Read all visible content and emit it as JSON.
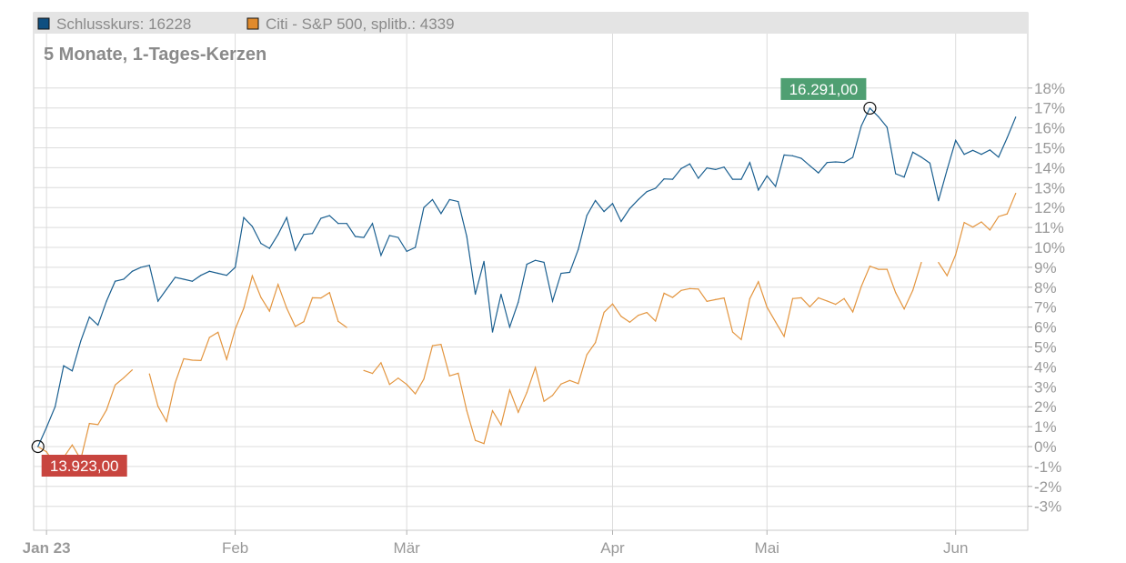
{
  "legend": [
    {
      "label": "Schlusskurs: 16228",
      "color": "#0f4f80"
    },
    {
      "label": "Citi - S&P 500, splitb.: 4339",
      "color": "#e08a2c"
    }
  ],
  "subtitle": "5 Monate, 1-Tages-Kerzen",
  "chart_data": {
    "type": "line",
    "grid": true,
    "y_axis": {
      "position": "right",
      "unit": "%",
      "ylim": [
        -3.5,
        18.5
      ],
      "ticks": [
        18,
        17,
        16,
        15,
        14,
        13,
        12,
        11,
        10,
        9,
        8,
        7,
        6,
        5,
        4,
        3,
        2,
        1,
        0,
        -1,
        -2,
        -3
      ],
      "tick_labels": [
        "18%",
        "17%",
        "16%",
        "15%",
        "14%",
        "13%",
        "12%",
        "11%",
        "10%",
        "9%",
        "8%",
        "7%",
        "6%",
        "5%",
        "4%",
        "3%",
        "2%",
        "1%",
        "0%",
        "-1%",
        "-2%",
        "-3%"
      ]
    },
    "x_axis": {
      "unit": "trading day index",
      "ticks": [
        {
          "label": "Jan 23",
          "at": 1,
          "bold": true
        },
        {
          "label": "Feb",
          "at": 23
        },
        {
          "label": "Mär",
          "at": 43
        },
        {
          "label": "Apr",
          "at": 67
        },
        {
          "label": "Mai",
          "at": 85
        },
        {
          "label": "Jun",
          "at": 107
        }
      ]
    },
    "series": [
      {
        "name": "Schlusskurs",
        "color": "#1a5f90",
        "values": [
          0,
          0.96,
          2.0,
          4.06,
          3.8,
          5.3,
          6.5,
          6.1,
          7.3,
          8.3,
          8.4,
          8.8,
          9.0,
          9.1,
          7.3,
          7.9,
          8.5,
          8.4,
          8.3,
          8.6,
          8.8,
          8.7,
          8.6,
          9.0,
          11.5,
          11.05,
          10.2,
          9.95,
          10.65,
          11.5,
          9.86,
          10.65,
          10.7,
          11.46,
          11.6,
          11.2,
          11.2,
          10.55,
          10.5,
          11.2,
          9.6,
          10.6,
          10.5,
          9.8,
          10.0,
          12.0,
          12.4,
          11.7,
          12.4,
          12.3,
          10.55,
          7.65,
          9.3,
          5.75,
          7.65,
          6.0,
          7.25,
          9.15,
          9.35,
          9.25,
          7.3,
          8.7,
          8.75,
          9.9,
          11.6,
          12.35,
          11.8,
          12.2,
          11.3,
          11.95,
          12.4,
          12.8,
          12.97,
          13.44,
          13.42,
          13.96,
          14.19,
          13.47,
          13.99,
          13.91,
          14.03,
          13.42,
          13.42,
          14.26,
          12.88,
          13.59,
          13.06,
          14.64,
          14.6,
          14.47,
          14.1,
          13.74,
          14.26,
          14.29,
          14.26,
          14.52,
          16.1,
          16.99,
          16.56,
          16.03,
          13.7,
          13.53,
          14.78,
          14.53,
          14.23,
          12.34,
          13.9,
          15.37,
          14.67,
          14.87,
          14.67,
          14.89,
          14.53,
          15.5,
          16.54
        ]
      },
      {
        "name": "Citi - S&P 500, splitb.",
        "color": "#e3953f",
        "values": [
          0,
          -0.26,
          -0.9,
          -0.55,
          0.08,
          -0.64,
          1.16,
          1.1,
          1.84,
          3.09,
          3.45,
          3.85,
          null,
          3.65,
          2.02,
          1.26,
          3.2,
          4.41,
          4.34,
          4.32,
          5.48,
          5.74,
          4.38,
          5.9,
          6.94,
          8.57,
          7.49,
          6.8,
          8.14,
          6.95,
          6.03,
          6.27,
          7.47,
          7.46,
          7.73,
          6.29,
          5.98,
          null,
          3.82,
          3.67,
          4.21,
          3.12,
          3.44,
          3.12,
          2.65,
          3.39,
          5.07,
          5.13,
          3.55,
          3.68,
          1.8,
          0.31,
          0.15,
          1.8,
          1.08,
          2.84,
          1.72,
          2.71,
          3.97,
          2.27,
          2.57,
          3.14,
          3.32,
          3.16,
          4.61,
          5.22,
          6.74,
          7.16,
          6.54,
          6.24,
          6.59,
          6.73,
          6.3,
          7.7,
          7.49,
          7.84,
          7.93,
          7.91,
          7.29,
          7.38,
          7.46,
          5.75,
          5.37,
          7.43,
          8.28,
          7.0,
          6.26,
          5.53,
          7.43,
          7.47,
          7.02,
          7.47,
          7.31,
          7.14,
          7.43,
          6.76,
          8.04,
          9.06,
          8.9,
          8.9,
          7.73,
          6.91,
          7.84,
          9.24,
          null,
          9.24,
          8.58,
          9.63,
          11.25,
          11.02,
          11.28,
          10.87,
          11.55,
          11.68,
          12.71
        ]
      }
    ],
    "annotations": [
      {
        "label": "13.923,00",
        "series": 0,
        "index": 0,
        "color": "#c8453f",
        "kind": "low"
      },
      {
        "label": "16.291,00",
        "series": 0,
        "index": 97,
        "color": "#4f9f72",
        "kind": "high"
      }
    ]
  }
}
